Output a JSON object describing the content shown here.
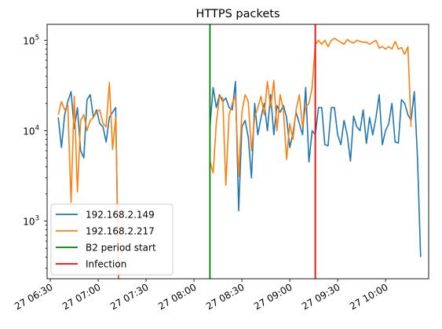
{
  "chart_data": {
    "type": "line",
    "title": "HTTPS packets",
    "xlabel": "",
    "ylabel": "",
    "y_scale": "log",
    "ylim": [
      230,
      150000
    ],
    "xlim": [
      "2024-01-27T06:28",
      "2024-01-27T10:27"
    ],
    "grid": false,
    "legend_position": "lower-left",
    "x_ticks": [
      {
        "t": "2024-01-27T06:30",
        "label": "27 06:30"
      },
      {
        "t": "2024-01-27T07:00",
        "label": "27 07:00"
      },
      {
        "t": "2024-01-27T07:30",
        "label": "27 07:30"
      },
      {
        "t": "2024-01-27T08:00",
        "label": "27 08:00"
      },
      {
        "t": "2024-01-27T08:30",
        "label": "27 08:30"
      },
      {
        "t": "2024-01-27T09:00",
        "label": "27 09:00"
      },
      {
        "t": "2024-01-27T09:30",
        "label": "27 09:30"
      },
      {
        "t": "2024-01-27T10:00",
        "label": "27 10:00"
      }
    ],
    "y_ticks": [
      {
        "value": 1000,
        "label": "10",
        "exp": "3"
      },
      {
        "value": 10000,
        "label": "10",
        "exp": "4"
      },
      {
        "value": 100000,
        "label": "10",
        "exp": "5"
      }
    ],
    "series": [
      {
        "name": "192.168.2.149",
        "color": "#1f77b4",
        "segments": [
          {
            "start": "2024-01-27T06:35",
            "step_min": 2,
            "values": [
              14000,
              6500,
              15000,
              21000,
              27000,
              10500,
              18000,
              6000,
              5000,
              22000,
              25000,
              14000,
              17000,
              12000,
              11000,
              7500,
              14000,
              16000,
              18000,
              100
            ]
          },
          {
            "start": "2024-01-27T08:10",
            "step_min": 2,
            "values": [
              11000,
              30000,
              18000,
              25000,
              21000,
              23000,
              18000,
              17000,
              35000,
              1300,
              11000,
              13000,
              8500,
              3000,
              20000,
              9000,
              14000,
              20000,
              10000,
              25000,
              9000,
              19000,
              16000,
              19000,
              14000,
              6500,
              9500,
              16000,
              12000,
              9000,
              30000,
              4500,
              10000,
              9000,
              18000,
              18000,
              7000,
              6800,
              18000,
              18000,
              9000,
              7000,
              13000,
              9000,
              4600,
              14500,
              11000,
              10000,
              17000,
              7200,
              14000,
              9000,
              14000,
              25000,
              7000,
              10000,
              12000,
              20000,
              7500,
              7300,
              22000,
              20000,
              15000,
              13000,
              27000,
              5000,
              400
            ]
          }
        ]
      },
      {
        "name": "192.168.2.217",
        "color": "#ff7f0e",
        "segments": [
          {
            "start": "2024-01-27T06:35",
            "step_min": 2,
            "values": [
              15000,
              21000,
              17000,
              19000,
              1600,
              24000,
              2100,
              13000,
              15000,
              10000,
              13000,
              14000,
              16000,
              17000,
              12000,
              11000,
              34000,
              6200,
              14000,
              200
            ]
          },
          {
            "start": "2024-01-27T08:10",
            "step_min": 2,
            "values": [
              4600,
              3400,
              12000,
              24000,
              23000,
              2500,
              15000,
              20000,
              24000,
              3100,
              16000,
              25000,
              21000,
              6000,
              14000,
              18000,
              24000,
              15000,
              35000,
              18000,
              36000,
              10000,
              25000,
              17000,
              4800,
              12000,
              8000,
              17000,
              25000,
              11000,
              18000,
              20000,
              30000,
              90000,
              100000,
              90000,
              100000,
              85000,
              100000,
              105000,
              100000,
              95000,
              90000,
              102000,
              96000,
              93000,
              100000,
              97000,
              95000,
              95000,
              90000,
              95000,
              100000,
              82000,
              85000,
              80000,
              85000,
              80000,
              97000,
              80000,
              83000,
              70000,
              85000,
              11000
            ]
          }
        ]
      }
    ],
    "vlines": [
      {
        "name": "B2 period start",
        "t": "2024-01-27T08:10",
        "color": "#008000"
      },
      {
        "name": "Infection",
        "t": "2024-01-27T09:16",
        "color": "#ff0000"
      }
    ]
  }
}
